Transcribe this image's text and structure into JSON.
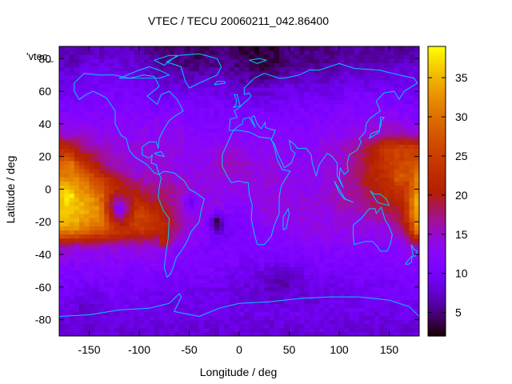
{
  "chart_data": {
    "type": "heatmap",
    "title": "VTEC / TECU 20060211_042.86400",
    "xlabel": "Longitude / deg",
    "ylabel": "Latitude / deg",
    "xlim": [
      -180,
      180
    ],
    "ylim": [
      -90,
      87.5
    ],
    "xticks": [
      -150,
      -100,
      -50,
      0,
      50,
      100,
      150
    ],
    "yticks": [
      -80,
      -60,
      -40,
      -20,
      0,
      20,
      40,
      60,
      80
    ],
    "series_key": "'vtec_",
    "colorbar": {
      "range": [
        2,
        39
      ],
      "ticks": [
        5,
        10,
        15,
        20,
        25,
        30,
        35
      ]
    },
    "grid_resolution": {
      "lon_step": 5,
      "lat_step": 2.5
    },
    "lon_anchors": [
      -180,
      -165,
      -150,
      -135,
      -120,
      -105,
      -90,
      -75,
      -60,
      -45,
      -30,
      -15,
      0,
      15,
      30,
      45,
      60,
      75,
      90,
      105,
      120,
      135,
      150,
      165,
      180
    ],
    "lat_anchors": [
      85,
      75,
      65,
      55,
      45,
      35,
      25,
      15,
      5,
      -5,
      -15,
      -25,
      -35,
      -45,
      -55,
      -65,
      -75,
      -85
    ],
    "values": [
      [
        6,
        6,
        7,
        7,
        7,
        7,
        6,
        5,
        5,
        4,
        4,
        5,
        4,
        4,
        4,
        5,
        5,
        5,
        5,
        6,
        6,
        6,
        6,
        6,
        6
      ],
      [
        8,
        8,
        9,
        9,
        9,
        8,
        7,
        6,
        6,
        5,
        6,
        6,
        5,
        5,
        5,
        5,
        6,
        6,
        6,
        7,
        7,
        7,
        8,
        8,
        8
      ],
      [
        9,
        9,
        10,
        10,
        10,
        9,
        9,
        8,
        8,
        8,
        8,
        8,
        7,
        7,
        7,
        8,
        8,
        8,
        8,
        9,
        9,
        9,
        9,
        9,
        9
      ],
      [
        10,
        10,
        11,
        11,
        11,
        11,
        10,
        10,
        10,
        10,
        10,
        10,
        9,
        9,
        9,
        10,
        10,
        10,
        10,
        11,
        11,
        11,
        11,
        10,
        10
      ],
      [
        12,
        12,
        12,
        12,
        12,
        12,
        12,
        12,
        12,
        11,
        11,
        11,
        11,
        11,
        11,
        11,
        11,
        11,
        12,
        12,
        12,
        13,
        13,
        12,
        12
      ],
      [
        14,
        14,
        14,
        13,
        13,
        13,
        13,
        13,
        13,
        12,
        12,
        12,
        12,
        12,
        12,
        12,
        12,
        12,
        13,
        13,
        14,
        15,
        16,
        15,
        14
      ],
      [
        24,
        21,
        17,
        15,
        14,
        14,
        14,
        14,
        14,
        13,
        13,
        14,
        14,
        13,
        13,
        13,
        13,
        13,
        14,
        15,
        17,
        21,
        25,
        26,
        24
      ],
      [
        28,
        26,
        22,
        18,
        15,
        14,
        14,
        14,
        13,
        13,
        14,
        16,
        15,
        14,
        14,
        13,
        13,
        13,
        14,
        15,
        18,
        22,
        24,
        26,
        28
      ],
      [
        34,
        33,
        30,
        24,
        20,
        17,
        16,
        16,
        15,
        14,
        14,
        14,
        14,
        14,
        14,
        14,
        13,
        13,
        14,
        16,
        18,
        21,
        23,
        24,
        33
      ],
      [
        36,
        35,
        33,
        29,
        25,
        22,
        19,
        18,
        16,
        14,
        14,
        13,
        13,
        13,
        14,
        14,
        14,
        14,
        15,
        16,
        17,
        19,
        21,
        23,
        36
      ],
      [
        37,
        36,
        34,
        32,
        29,
        27,
        24,
        21,
        16,
        14,
        14,
        13,
        11,
        13,
        14,
        14,
        14,
        14,
        14,
        15,
        15,
        16,
        18,
        21,
        37
      ],
      [
        33,
        32,
        30,
        28,
        26,
        24,
        24,
        22,
        16,
        13,
        12,
        9,
        11,
        12,
        12,
        12,
        13,
        14,
        14,
        14,
        14,
        14,
        14,
        17,
        33
      ],
      [
        16,
        15,
        15,
        14,
        14,
        14,
        14,
        13,
        12,
        12,
        11,
        11,
        11,
        11,
        11,
        11,
        12,
        12,
        12,
        12,
        12,
        12,
        12,
        13,
        16
      ],
      [
        12,
        12,
        12,
        12,
        12,
        12,
        12,
        12,
        11,
        11,
        11,
        11,
        10,
        10,
        10,
        10,
        10,
        11,
        11,
        11,
        11,
        11,
        11,
        12,
        12
      ],
      [
        11,
        11,
        11,
        11,
        11,
        10,
        10,
        10,
        10,
        10,
        10,
        9,
        9,
        8,
        8,
        7,
        8,
        9,
        9,
        10,
        10,
        10,
        10,
        11,
        11
      ],
      [
        10,
        10,
        10,
        10,
        10,
        10,
        9,
        9,
        9,
        9,
        9,
        9,
        8,
        8,
        8,
        8,
        8,
        8,
        9,
        9,
        9,
        10,
        10,
        10,
        10
      ],
      [
        9,
        9,
        9,
        9,
        9,
        9,
        9,
        9,
        9,
        9,
        9,
        9,
        9,
        9,
        9,
        9,
        9,
        9,
        9,
        9,
        9,
        9,
        9,
        9,
        9
      ],
      [
        8,
        8,
        8,
        8,
        8,
        8,
        8,
        8,
        8,
        8,
        8,
        8,
        8,
        8,
        8,
        8,
        8,
        8,
        8,
        8,
        8,
        8,
        8,
        8,
        8
      ]
    ],
    "spots": [
      {
        "lon": -22,
        "lat": -20,
        "radius": 14,
        "value": 2
      },
      {
        "lon": -48,
        "lat": -8,
        "radius": 12,
        "value": 8
      },
      {
        "lon": 25,
        "lat": 82,
        "radius": 28,
        "value": 3
      },
      {
        "lon": 5,
        "lat": 65,
        "radius": 10,
        "value": 6
      },
      {
        "lon": -150,
        "lat": -75,
        "radius": 30,
        "value": 7
      },
      {
        "lon": 40,
        "lat": -55,
        "radius": 20,
        "value": 6
      },
      {
        "lon": -120,
        "lat": -12,
        "radius": 22,
        "value": 9
      },
      {
        "lon": -170,
        "lat": -5,
        "radius": 10,
        "value": 39
      },
      {
        "lon": -170,
        "lat": 15,
        "radius": 10,
        "value": 34
      },
      {
        "lon": 160,
        "lat": 8,
        "radius": 10,
        "value": 30
      },
      {
        "lon": -75,
        "lat": -32,
        "radius": 10,
        "value": 23
      }
    ]
  }
}
